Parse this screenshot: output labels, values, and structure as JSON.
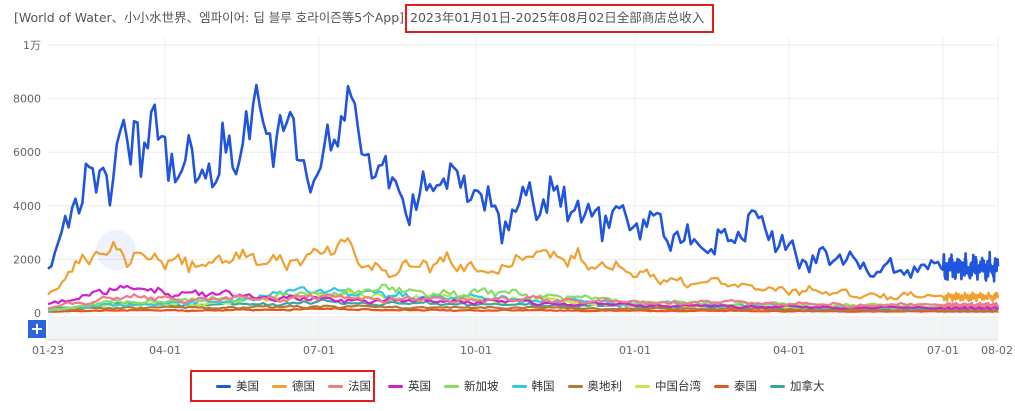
{
  "title": {
    "apps": "[World of Water、小小水世界、엠파이어: 딥 블루 호라이즌等5个App]",
    "range": "2023年01月01日-2025年08月02日全部商店总收入"
  },
  "zoom_button": "+",
  "chart_data": {
    "type": "line",
    "title": "2023年01月01日-2025年08月02日全部商店总收入",
    "xlabel": "",
    "ylabel": "",
    "x_tick_labels": [
      "01-23",
      "04-01",
      "07-01",
      "10-01",
      "01-01",
      "04-01",
      "07-01",
      "08-02"
    ],
    "y_tick_labels": [
      "0",
      "2000",
      "4000",
      "6000",
      "8000",
      "1万"
    ],
    "ylim": [
      0,
      10000
    ],
    "grid": true,
    "legend_position": "bottom",
    "x_resolution": "monthly approximations read from the plotted curve",
    "series": [
      {
        "name": "美国",
        "color": "#2255dd",
        "points": [
          [
            "2023-01-23",
            1500
          ],
          [
            "2023-02-15",
            4800
          ],
          [
            "2023-03-01",
            5600
          ],
          [
            "2023-03-15",
            7000
          ],
          [
            "2023-04-01",
            5500
          ],
          [
            "2023-04-15",
            5200
          ],
          [
            "2023-05-01",
            6100
          ],
          [
            "2023-05-15",
            6800
          ],
          [
            "2023-06-01",
            6200
          ],
          [
            "2023-06-15",
            6500
          ],
          [
            "2023-07-01",
            5800
          ],
          [
            "2023-07-15",
            7200
          ],
          [
            "2023-08-01",
            5500
          ],
          [
            "2023-08-15",
            4600
          ],
          [
            "2023-09-01",
            4500
          ],
          [
            "2023-09-15",
            4700
          ],
          [
            "2023-10-01",
            4200
          ],
          [
            "2023-10-15",
            3800
          ],
          [
            "2023-11-01",
            4300
          ],
          [
            "2023-11-15",
            3900
          ],
          [
            "2023-12-01",
            4000
          ],
          [
            "2023-12-15",
            3800
          ],
          [
            "2024-01-01",
            3200
          ],
          [
            "2024-01-15",
            2900
          ],
          [
            "2024-02-01",
            2800
          ],
          [
            "2024-02-15",
            2600
          ],
          [
            "2024-03-01",
            2700
          ],
          [
            "2024-03-15",
            3200
          ],
          [
            "2024-04-01",
            2500
          ],
          [
            "2024-04-15",
            2000
          ],
          [
            "2024-05-01",
            1900
          ],
          [
            "2024-05-15",
            1700
          ],
          [
            "2024-06-01",
            1800
          ],
          [
            "2024-06-15",
            1600
          ],
          [
            "2024-07-01",
            1700
          ],
          [
            "2024-07-15",
            1700
          ],
          [
            "2024-08-02",
            1700
          ]
        ]
      },
      {
        "name": "德国",
        "color": "#f0a030",
        "points": [
          [
            "2023-01-23",
            600
          ],
          [
            "2023-02-15",
            2200
          ],
          [
            "2023-03-01",
            2600
          ],
          [
            "2023-03-15",
            2000
          ],
          [
            "2023-04-01",
            1800
          ],
          [
            "2023-05-01",
            2000
          ],
          [
            "2023-06-01",
            1900
          ],
          [
            "2023-07-01",
            2200
          ],
          [
            "2023-07-15",
            2500
          ],
          [
            "2023-08-01",
            1700
          ],
          [
            "2023-09-01",
            1800
          ],
          [
            "2023-10-01",
            1700
          ],
          [
            "2023-11-01",
            2000
          ],
          [
            "2023-12-01",
            2100
          ],
          [
            "2024-01-01",
            1300
          ],
          [
            "2024-02-01",
            1200
          ],
          [
            "2024-03-01",
            1000
          ],
          [
            "2024-04-01",
            900
          ],
          [
            "2024-05-01",
            700
          ],
          [
            "2024-06-01",
            650
          ],
          [
            "2024-07-01",
            600
          ],
          [
            "2024-08-02",
            600
          ]
        ]
      },
      {
        "name": "法国",
        "color": "#f07a8a",
        "points": [
          [
            "2023-01-23",
            200
          ],
          [
            "2023-03-01",
            600
          ],
          [
            "2023-05-01",
            500
          ],
          [
            "2023-07-01",
            600
          ],
          [
            "2023-09-01",
            500
          ],
          [
            "2023-11-01",
            500
          ],
          [
            "2024-01-01",
            400
          ],
          [
            "2024-03-01",
            400
          ],
          [
            "2024-05-01",
            300
          ],
          [
            "2024-07-01",
            300
          ],
          [
            "2024-08-02",
            300
          ]
        ]
      },
      {
        "name": "英国",
        "color": "#cc22cc",
        "points": [
          [
            "2023-01-23",
            300
          ],
          [
            "2023-03-01",
            900
          ],
          [
            "2023-05-01",
            700
          ],
          [
            "2023-07-01",
            500
          ],
          [
            "2023-09-01",
            450
          ],
          [
            "2023-11-01",
            400
          ],
          [
            "2024-01-01",
            300
          ],
          [
            "2024-03-01",
            250
          ],
          [
            "2024-05-01",
            200
          ],
          [
            "2024-07-01",
            200
          ],
          [
            "2024-08-02",
            200
          ]
        ]
      },
      {
        "name": "新加坡",
        "color": "#88dd66",
        "points": [
          [
            "2023-01-23",
            100
          ],
          [
            "2023-03-01",
            400
          ],
          [
            "2023-05-01",
            500
          ],
          [
            "2023-07-01",
            700
          ],
          [
            "2023-08-01",
            900
          ],
          [
            "2023-09-01",
            800
          ],
          [
            "2023-11-01",
            700
          ],
          [
            "2024-01-01",
            400
          ],
          [
            "2024-03-01",
            350
          ],
          [
            "2024-05-01",
            300
          ],
          [
            "2024-07-01",
            250
          ],
          [
            "2024-08-02",
            250
          ]
        ]
      },
      {
        "name": "韩国",
        "color": "#33c6e6",
        "points": [
          [
            "2023-01-23",
            100
          ],
          [
            "2023-03-01",
            300
          ],
          [
            "2023-05-01",
            400
          ],
          [
            "2023-07-01",
            900
          ],
          [
            "2023-08-01",
            700
          ],
          [
            "2023-09-01",
            600
          ],
          [
            "2023-11-01",
            500
          ],
          [
            "2024-01-01",
            350
          ],
          [
            "2024-03-01",
            300
          ],
          [
            "2024-05-01",
            200
          ],
          [
            "2024-07-01",
            200
          ],
          [
            "2024-08-02",
            200
          ]
        ]
      },
      {
        "name": "奥地利",
        "color": "#b07a3a",
        "points": [
          [
            "2023-01-23",
            100
          ],
          [
            "2023-03-01",
            200
          ],
          [
            "2023-05-01",
            200
          ],
          [
            "2023-07-01",
            250
          ],
          [
            "2023-09-01",
            200
          ],
          [
            "2023-11-01",
            200
          ],
          [
            "2024-01-01",
            150
          ],
          [
            "2024-03-01",
            150
          ],
          [
            "2024-05-01",
            100
          ],
          [
            "2024-07-01",
            100
          ],
          [
            "2024-08-02",
            100
          ]
        ]
      },
      {
        "name": "中国台湾",
        "color": "#c8e64a",
        "points": [
          [
            "2023-01-23",
            100
          ],
          [
            "2023-03-01",
            300
          ],
          [
            "2023-05-01",
            350
          ],
          [
            "2023-07-01",
            700
          ],
          [
            "2023-09-01",
            550
          ],
          [
            "2023-11-01",
            500
          ],
          [
            "2024-01-01",
            300
          ],
          [
            "2024-03-01",
            250
          ],
          [
            "2024-05-01",
            200
          ],
          [
            "2024-07-01",
            200
          ],
          [
            "2024-08-02",
            200
          ]
        ]
      },
      {
        "name": "泰国",
        "color": "#e8551a",
        "points": [
          [
            "2023-01-23",
            50
          ],
          [
            "2023-03-01",
            100
          ],
          [
            "2023-05-01",
            100
          ],
          [
            "2023-07-01",
            150
          ],
          [
            "2023-09-01",
            100
          ],
          [
            "2023-11-01",
            100
          ],
          [
            "2024-01-01",
            80
          ],
          [
            "2024-03-01",
            80
          ],
          [
            "2024-05-01",
            60
          ],
          [
            "2024-07-01",
            60
          ],
          [
            "2024-08-02",
            60
          ]
        ]
      },
      {
        "name": "加拿大",
        "color": "#3aa89a",
        "points": [
          [
            "2023-01-23",
            150
          ],
          [
            "2023-03-01",
            350
          ],
          [
            "2023-05-01",
            300
          ],
          [
            "2023-07-01",
            400
          ],
          [
            "2023-09-01",
            350
          ],
          [
            "2023-11-01",
            300
          ],
          [
            "2024-01-01",
            250
          ],
          [
            "2024-03-01",
            200
          ],
          [
            "2024-05-01",
            150
          ],
          [
            "2024-07-01",
            150
          ],
          [
            "2024-08-02",
            150
          ]
        ]
      }
    ]
  },
  "legend": [
    {
      "label": "美国",
      "color": "#2255dd"
    },
    {
      "label": "德国",
      "color": "#f0a030"
    },
    {
      "label": "法国",
      "color": "#f07a8a"
    },
    {
      "label": "英国",
      "color": "#cc22cc"
    },
    {
      "label": "新加坡",
      "color": "#88dd66"
    },
    {
      "label": "韩国",
      "color": "#33c6e6"
    },
    {
      "label": "奥地利",
      "color": "#b07a3a"
    },
    {
      "label": "中国台湾",
      "color": "#c8e64a"
    },
    {
      "label": "泰国",
      "color": "#e8551a"
    },
    {
      "label": "加拿大",
      "color": "#3aa89a"
    }
  ]
}
